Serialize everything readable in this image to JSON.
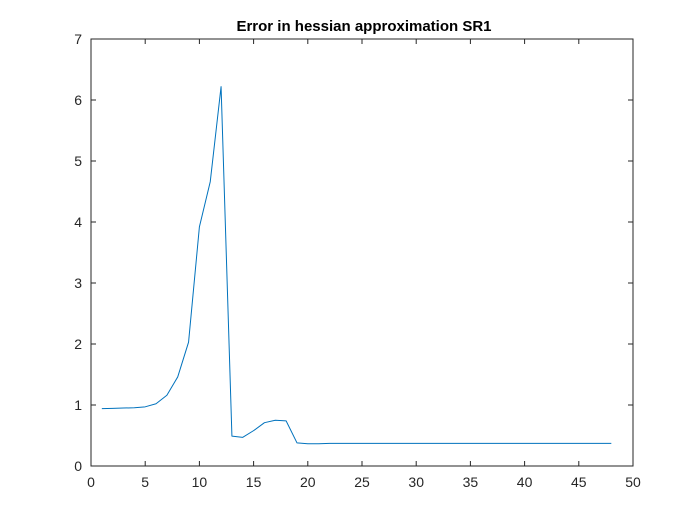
{
  "chart_data": {
    "type": "line",
    "title": "Error in hessian approximation SR1",
    "xlabel": "",
    "ylabel": "",
    "xlim": [
      0,
      50
    ],
    "ylim": [
      0,
      7
    ],
    "xticks": [
      0,
      5,
      10,
      15,
      20,
      25,
      30,
      35,
      40,
      45,
      50
    ],
    "yticks": [
      0,
      1,
      2,
      3,
      4,
      5,
      6,
      7
    ],
    "grid": false,
    "box": true,
    "series": [
      {
        "color": "#0072BD",
        "x": [
          1,
          2,
          3,
          4,
          5,
          6,
          7,
          8,
          9,
          10,
          11,
          12,
          13,
          14,
          15,
          16,
          17,
          18,
          19,
          20,
          21,
          22,
          23,
          24,
          25,
          26,
          27,
          28,
          29,
          30,
          31,
          32,
          33,
          34,
          35,
          36,
          37,
          38,
          39,
          40,
          41,
          42,
          43,
          44,
          45,
          46,
          47,
          48
        ],
        "y": [
          0.94,
          0.945,
          0.95,
          0.955,
          0.97,
          1.02,
          1.16,
          1.46,
          2.03,
          3.92,
          4.66,
          6.22,
          0.49,
          0.47,
          0.58,
          0.71,
          0.75,
          0.74,
          0.38,
          0.365,
          0.365,
          0.37,
          0.37,
          0.37,
          0.37,
          0.37,
          0.37,
          0.37,
          0.37,
          0.37,
          0.37,
          0.37,
          0.37,
          0.37,
          0.37,
          0.37,
          0.37,
          0.37,
          0.37,
          0.37,
          0.37,
          0.37,
          0.37,
          0.37,
          0.37,
          0.37,
          0.37,
          0.37
        ]
      }
    ]
  }
}
